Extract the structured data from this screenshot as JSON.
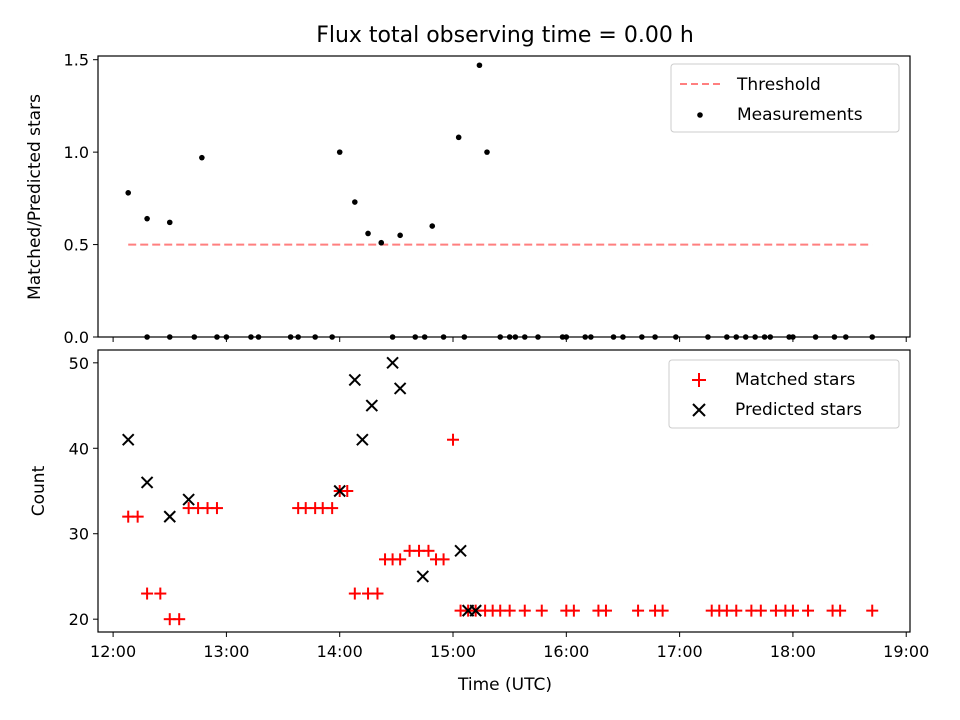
{
  "title": "Flux total observing time = 0.00 h",
  "chart_data": [
    {
      "type": "scatter",
      "ylabel": "Matched/Predicted stars",
      "ylim": [
        0,
        1.52
      ],
      "yticks": [
        0.0,
        0.5,
        1.0,
        1.5
      ],
      "ytick_labels": [
        "0.0",
        "0.5",
        "1.0",
        "1.5"
      ],
      "legend_position": "top-right",
      "series": [
        {
          "name": "Threshold",
          "kind": "dashed-line",
          "color": "#ff7f7f",
          "x": [
            "12:08",
            "18:42"
          ],
          "y": [
            0.5,
            0.5
          ]
        },
        {
          "name": "Measurements",
          "kind": "dot",
          "color": "#000000",
          "x": [
            "12:08",
            "12:18",
            "12:18",
            "12:30",
            "12:30",
            "12:43",
            "12:47",
            "12:55",
            "13:00",
            "13:13",
            "13:17",
            "13:34",
            "13:38",
            "13:47",
            "13:56",
            "14:00",
            "14:08",
            "14:15",
            "14:22",
            "14:28",
            "14:32",
            "14:40",
            "14:45",
            "14:49",
            "14:55",
            "15:03",
            "15:06",
            "15:14",
            "15:18",
            "15:25",
            "15:30",
            "15:33",
            "15:38",
            "15:45",
            "15:58",
            "16:00",
            "16:10",
            "16:13",
            "16:25",
            "16:30",
            "16:40",
            "16:47",
            "16:58",
            "17:15",
            "17:25",
            "17:30",
            "17:35",
            "17:40",
            "17:45",
            "17:48",
            "17:58",
            "18:00",
            "18:12",
            "18:22",
            "18:28",
            "18:42"
          ],
          "y": [
            0.78,
            0.0,
            0.64,
            0.0,
            0.62,
            0.0,
            0.97,
            0.0,
            0.0,
            0.0,
            0.0,
            0.0,
            0.0,
            0.0,
            0.0,
            1.0,
            0.73,
            0.56,
            0.51,
            0.0,
            0.55,
            0.0,
            0.0,
            0.6,
            0.0,
            1.08,
            0.0,
            1.47,
            1.0,
            0.0,
            0.0,
            0.0,
            0.0,
            0.0,
            0.0,
            0.0,
            0.0,
            0.0,
            0.0,
            0.0,
            0.0,
            0.0,
            0.0,
            0.0,
            0.0,
            0.0,
            0.0,
            0.0,
            0.0,
            0.0,
            0.0,
            0.0,
            0.0,
            0.0,
            0.0,
            0.0
          ]
        }
      ]
    },
    {
      "type": "scatter",
      "xlabel": "Time (UTC)",
      "ylabel": "Count",
      "xlim": [
        "11:52",
        "19:02"
      ],
      "ylim": [
        18.5,
        51.5
      ],
      "xticks": [
        "12:00",
        "13:00",
        "14:00",
        "15:00",
        "16:00",
        "17:00",
        "18:00",
        "19:00"
      ],
      "yticks": [
        20,
        30,
        40,
        50
      ],
      "ytick_labels": [
        "20",
        "30",
        "40",
        "50"
      ],
      "legend_position": "top-right",
      "series": [
        {
          "name": "Matched stars",
          "marker": "plus",
          "color": "#ff0000",
          "x": [
            "12:08",
            "12:13",
            "12:18",
            "12:25",
            "12:30",
            "12:35",
            "12:40",
            "12:45",
            "12:50",
            "12:55",
            "13:38",
            "13:42",
            "13:47",
            "13:51",
            "13:56",
            "14:00",
            "14:04",
            "14:08",
            "14:15",
            "14:20",
            "14:24",
            "14:28",
            "14:32",
            "14:37",
            "14:42",
            "14:47",
            "14:51",
            "14:55",
            "15:00",
            "15:04",
            "15:08",
            "15:12",
            "15:17",
            "15:21",
            "15:25",
            "15:30",
            "15:38",
            "15:47",
            "16:00",
            "16:04",
            "16:17",
            "16:21",
            "16:38",
            "16:47",
            "16:51",
            "17:17",
            "17:21",
            "17:25",
            "17:30",
            "17:38",
            "17:43",
            "17:51",
            "17:56",
            "18:00",
            "18:08",
            "18:21",
            "18:25",
            "18:42"
          ],
          "y": [
            32,
            32,
            23,
            23,
            20,
            20,
            33,
            33,
            33,
            33,
            33,
            33,
            33,
            33,
            33,
            35,
            35,
            23,
            23,
            23,
            27,
            27,
            27,
            28,
            28,
            28,
            27,
            27,
            41,
            21,
            21,
            21,
            21,
            21,
            21,
            21,
            21,
            21,
            21,
            21,
            21,
            21,
            21,
            21,
            21,
            21,
            21,
            21,
            21,
            21,
            21,
            21,
            21,
            21,
            21,
            21,
            21,
            21
          ]
        },
        {
          "name": "Predicted stars",
          "marker": "x",
          "color": "#000000",
          "x": [
            "12:08",
            "12:18",
            "12:30",
            "12:40",
            "14:00",
            "14:08",
            "14:12",
            "14:17",
            "14:28",
            "14:32",
            "14:44",
            "15:04",
            "15:08",
            "15:12"
          ],
          "y": [
            41,
            36,
            32,
            34,
            35,
            48,
            41,
            45,
            50,
            47,
            25,
            28,
            21,
            21
          ]
        }
      ]
    }
  ]
}
